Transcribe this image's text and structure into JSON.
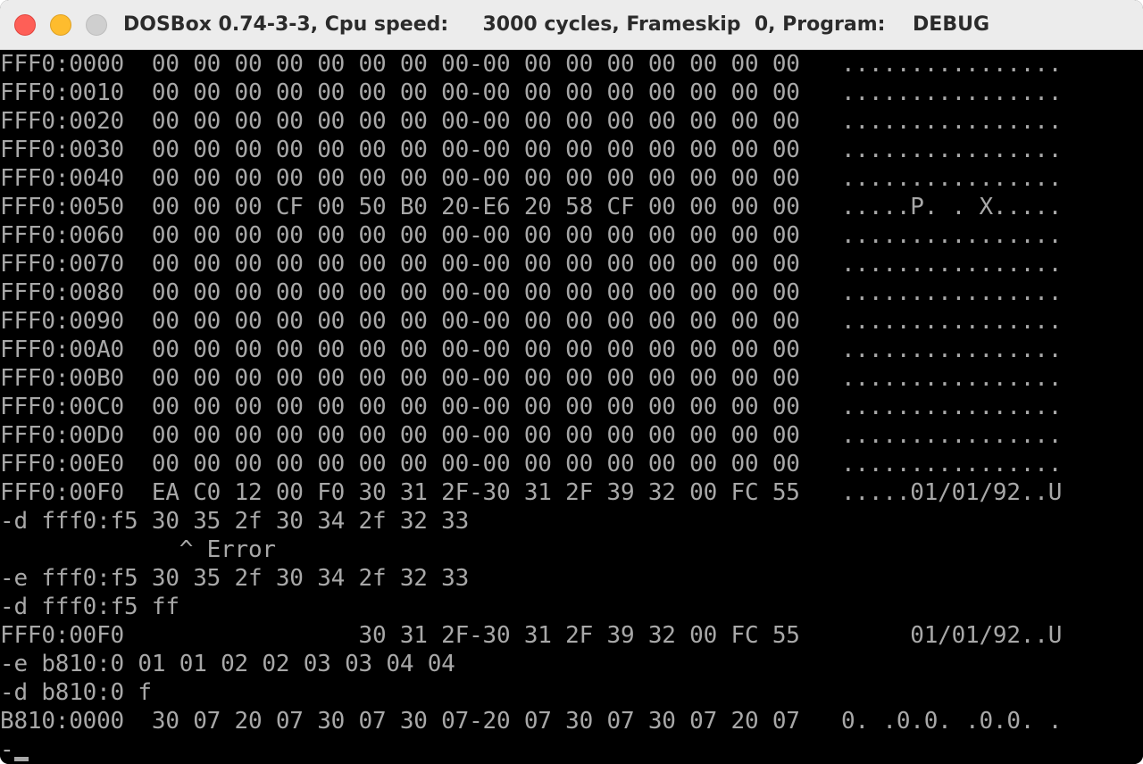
{
  "window": {
    "title": "DOSBox 0.74-3-3, Cpu speed:     3000 cycles, Frameskip  0, Program:    DEBUG",
    "controls": {
      "close": "close",
      "minimize": "minimize",
      "zoom": "zoom"
    }
  },
  "colors": {
    "text": "#a8a8a8",
    "background": "#000000"
  },
  "console": {
    "lines": [
      "FFF0:0000  00 00 00 00 00 00 00 00-00 00 00 00 00 00 00 00   ................",
      "FFF0:0010  00 00 00 00 00 00 00 00-00 00 00 00 00 00 00 00   ................",
      "FFF0:0020  00 00 00 00 00 00 00 00-00 00 00 00 00 00 00 00   ................",
      "FFF0:0030  00 00 00 00 00 00 00 00-00 00 00 00 00 00 00 00   ................",
      "FFF0:0040  00 00 00 00 00 00 00 00-00 00 00 00 00 00 00 00   ................",
      "FFF0:0050  00 00 00 CF 00 50 B0 20-E6 20 58 CF 00 00 00 00   .....P. . X.....",
      "FFF0:0060  00 00 00 00 00 00 00 00-00 00 00 00 00 00 00 00   ................",
      "FFF0:0070  00 00 00 00 00 00 00 00-00 00 00 00 00 00 00 00   ................",
      "FFF0:0080  00 00 00 00 00 00 00 00-00 00 00 00 00 00 00 00   ................",
      "FFF0:0090  00 00 00 00 00 00 00 00-00 00 00 00 00 00 00 00   ................",
      "FFF0:00A0  00 00 00 00 00 00 00 00-00 00 00 00 00 00 00 00   ................",
      "FFF0:00B0  00 00 00 00 00 00 00 00-00 00 00 00 00 00 00 00   ................",
      "FFF0:00C0  00 00 00 00 00 00 00 00-00 00 00 00 00 00 00 00   ................",
      "FFF0:00D0  00 00 00 00 00 00 00 00-00 00 00 00 00 00 00 00   ................",
      "FFF0:00E0  00 00 00 00 00 00 00 00-00 00 00 00 00 00 00 00   ................",
      "FFF0:00F0  EA C0 12 00 F0 30 31 2F-30 31 2F 39 32 00 FC 55   .....01/01/92..U",
      "-d fff0:f5 30 35 2f 30 34 2f 32 33",
      "             ^ Error",
      "-e fff0:f5 30 35 2f 30 34 2f 32 33",
      "-d fff0:f5 ff",
      "FFF0:00F0                 30 31 2F-30 31 2F 39 32 00 FC 55        01/01/92..U",
      "-e b810:0 01 01 02 02 03 03 04 04",
      "-d b810:0 f",
      "B810:0000  30 07 20 07 30 07 30 07-20 07 30 07 30 07 20 07   0. .0.0. .0.0. ."
    ],
    "prompt": "-"
  }
}
